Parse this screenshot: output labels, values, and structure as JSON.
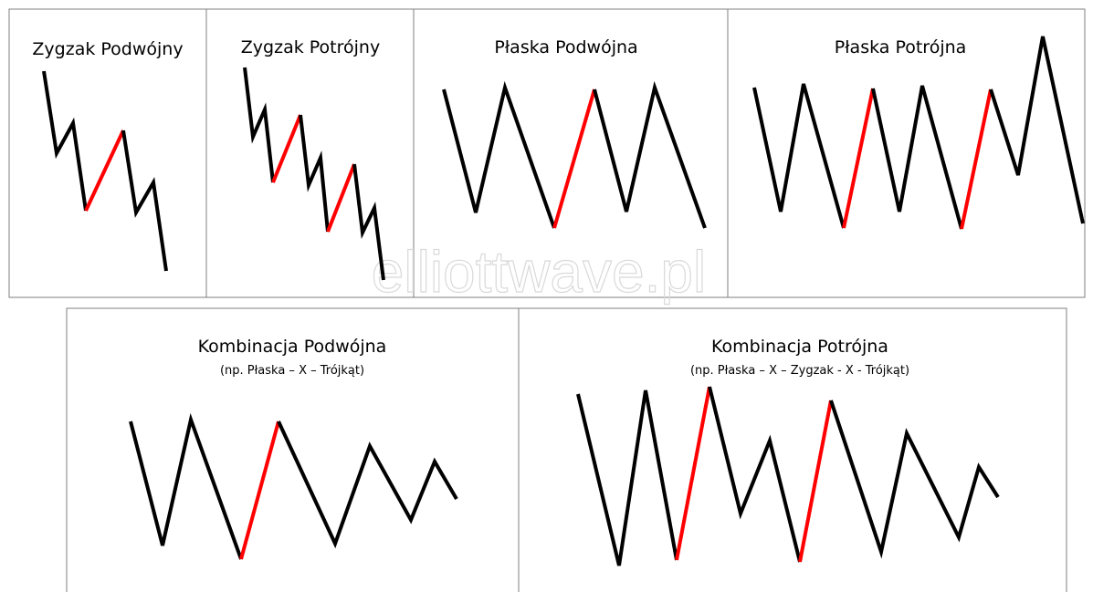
{
  "watermark": "elliottwave.pl",
  "panels": [
    {
      "title": "Zygzak Podwójny"
    },
    {
      "title": "Zygzak Potrójny"
    },
    {
      "title": "Płaska Podwójna"
    },
    {
      "title": "Płaska Potrójna"
    },
    {
      "title": "Kombinacja Podwójna",
      "subtitle": "(np. Płaska – X – Trójkąt)"
    },
    {
      "title": "Kombinacja Potrójna",
      "subtitle": "(np. Płaska – X – Zygzak - X - Trójkąt)"
    }
  ]
}
